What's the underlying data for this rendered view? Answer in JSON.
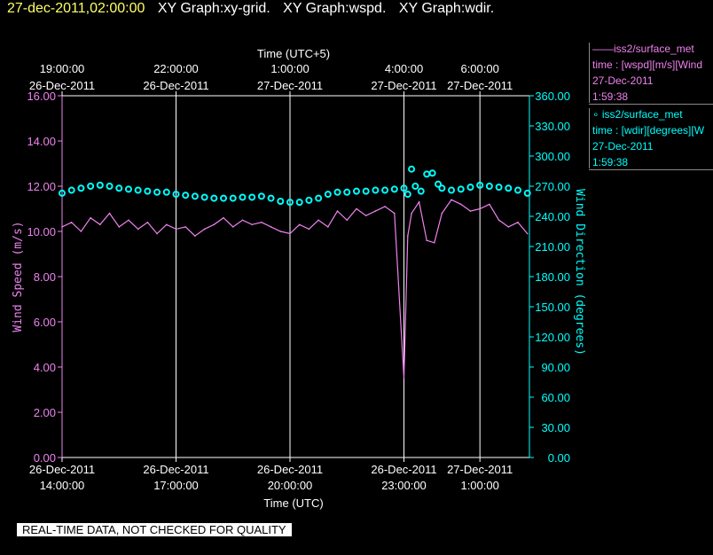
{
  "header": {
    "timestamp": "27-dec-2011,02:00:00",
    "titles": [
      "XY Graph:xy-grid.",
      "XY Graph:wspd.",
      "XY Graph:wdir."
    ]
  },
  "legend": [
    {
      "name": "iss2/surface_met",
      "line2": "time : [wspd][m/s][Wind",
      "line3": "27-Dec-2011",
      "line4": "1:59:38",
      "color": "#ee82ee",
      "marker": "line"
    },
    {
      "name": "iss2/surface_met",
      "line2": "time : [wdir][degrees][W",
      "line3": "27-Dec-2011",
      "line4": "1:59:38",
      "color": "#00ffff",
      "marker": "circle"
    }
  ],
  "quality_note": "REAL-TIME DATA, NOT CHECKED FOR QUALITY",
  "chart_data": {
    "type": "line",
    "top_axis": {
      "label": "Time (UTC+5)",
      "ticks": [
        {
          "t": 0,
          "l1": "19:00:00",
          "l2": "26-Dec-2011"
        },
        {
          "t": 3,
          "l1": "22:00:00",
          "l2": "26-Dec-2011"
        },
        {
          "t": 6,
          "l1": "1:00:00",
          "l2": "27-Dec-2011"
        },
        {
          "t": 9,
          "l1": "4:00:00",
          "l2": "27-Dec-2011"
        },
        {
          "t": 11,
          "l1": "6:00:00",
          "l2": "27-Dec-2011"
        }
      ]
    },
    "x_axis": {
      "label": "Time (UTC)",
      "ticks": [
        {
          "t": 0,
          "l1": "26-Dec-2011",
          "l2": "14:00:00"
        },
        {
          "t": 3,
          "l1": "26-Dec-2011",
          "l2": "17:00:00"
        },
        {
          "t": 6,
          "l1": "26-Dec-2011",
          "l2": "20:00:00"
        },
        {
          "t": 9,
          "l1": "26-Dec-2011",
          "l2": "23:00:00"
        },
        {
          "t": 11,
          "l1": "27-Dec-2011",
          "l2": "1:00:00"
        }
      ],
      "range_hours": [
        0,
        12.42
      ]
    },
    "y_left": {
      "label": "Wind Speed (m/s)",
      "min": 0,
      "max": 16,
      "ticks": [
        "0.00",
        "2.00",
        "4.00",
        "6.00",
        "8.00",
        "10.00",
        "12.00",
        "14.00",
        "16.00"
      ],
      "color": "#ee82ee"
    },
    "y_right": {
      "label": "Wind Direction (degrees)",
      "min": 0,
      "max": 360,
      "ticks": [
        "0.00",
        "30.00",
        "60.00",
        "90.00",
        "120.00",
        "150.00",
        "180.00",
        "210.00",
        "240.00",
        "270.00",
        "300.00",
        "330.00",
        "360.00"
      ],
      "color": "#00ffff"
    },
    "series": [
      {
        "name": "iss2/surface_met time : [wspd][m/s]",
        "axis": "left",
        "style": "line",
        "color": "#ee82ee",
        "x": [
          0,
          0.25,
          0.5,
          0.75,
          1,
          1.25,
          1.5,
          1.75,
          2,
          2.25,
          2.5,
          2.75,
          3,
          3.25,
          3.5,
          3.75,
          4,
          4.25,
          4.5,
          4.75,
          5,
          5.25,
          5.5,
          5.75,
          6,
          6.25,
          6.5,
          6.75,
          7,
          7.25,
          7.5,
          7.75,
          8,
          8.25,
          8.5,
          8.75,
          9,
          9.1,
          9.2,
          9.4,
          9.6,
          9.8,
          10,
          10.25,
          10.5,
          10.75,
          11,
          11.25,
          11.5,
          11.75,
          12,
          12.25
        ],
        "y": [
          10.2,
          10.4,
          10.0,
          10.6,
          10.3,
          10.8,
          10.2,
          10.5,
          10.1,
          10.4,
          9.9,
          10.3,
          10.1,
          10.2,
          9.8,
          10.1,
          10.3,
          10.6,
          10.2,
          10.5,
          10.3,
          10.4,
          10.2,
          10.0,
          9.9,
          10.3,
          10.1,
          10.5,
          10.2,
          10.9,
          10.5,
          11.0,
          10.7,
          10.9,
          11.1,
          10.8,
          3.5,
          9.8,
          10.8,
          11.3,
          9.6,
          9.5,
          10.8,
          11.4,
          11.2,
          10.9,
          11.0,
          11.2,
          10.5,
          10.2,
          10.4,
          9.9
        ]
      },
      {
        "name": "iss2/surface_met time : [wdir][degrees]",
        "axis": "right",
        "style": "markers",
        "color": "#00ffff",
        "x": [
          0,
          0.25,
          0.5,
          0.75,
          1,
          1.25,
          1.5,
          1.75,
          2,
          2.25,
          2.5,
          2.75,
          3,
          3.25,
          3.5,
          3.75,
          4,
          4.25,
          4.5,
          4.75,
          5,
          5.25,
          5.5,
          5.75,
          6,
          6.25,
          6.5,
          6.75,
          7,
          7.25,
          7.5,
          7.75,
          8,
          8.25,
          8.5,
          8.75,
          9,
          9.1,
          9.2,
          9.3,
          9.45,
          9.6,
          9.75,
          9.9,
          10,
          10.25,
          10.5,
          10.75,
          11,
          11.25,
          11.5,
          11.75,
          12,
          12.25
        ],
        "y": [
          263,
          266,
          268,
          270,
          271,
          270,
          268,
          267,
          266,
          265,
          264,
          264,
          262,
          261,
          260,
          259,
          258,
          258,
          258,
          259,
          259,
          260,
          258,
          255,
          254,
          254,
          256,
          258,
          262,
          264,
          264,
          265,
          265,
          266,
          266,
          267,
          268,
          262,
          287,
          270,
          265,
          282,
          283,
          272,
          268,
          266,
          267,
          269,
          271,
          270,
          269,
          268,
          266,
          263
        ]
      }
    ]
  }
}
